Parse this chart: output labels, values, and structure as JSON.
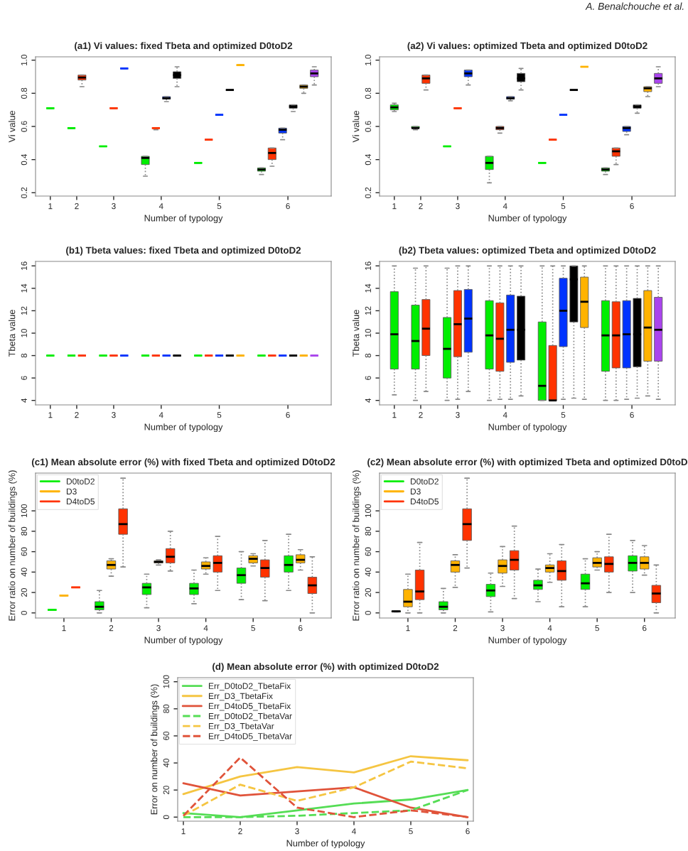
{
  "chart_data": [
    {
      "type": "box",
      "title": "(a1) Vi values: fixed Tbeta and optimized D0toD2",
      "xlabel": "Number of typology",
      "ylabel": "Vi value",
      "annotations": [
        "A. Benalchouche et al."
      ],
      "categories": [
        "1",
        "2",
        "3",
        "4",
        "5",
        "6"
      ],
      "series": [
        {
          "color": "#00ee00",
          "boxes": [
            {
              "low": 0.71,
              "q1": 0.71,
              "median": 0.71,
              "q3": 0.71,
              "high": 0.71
            },
            {
              "low": 0.59,
              "q1": 0.59,
              "median": 0.59,
              "q3": 0.59,
              "high": 0.59
            },
            {
              "low": 0.48,
              "q1": 0.48,
              "median": 0.48,
              "q3": 0.48,
              "high": 0.48
            },
            {
              "low": 0.3,
              "q1": 0.37,
              "median": 0.41,
              "q3": 0.42,
              "high": 0.42
            },
            {
              "low": 0.38,
              "q1": 0.38,
              "median": 0.38,
              "q3": 0.38,
              "high": 0.38
            },
            {
              "low": 0.31,
              "q1": 0.33,
              "median": 0.34,
              "q3": 0.35,
              "high": 0.35
            }
          ]
        },
        {
          "color": "#ff3300",
          "boxes": [
            null,
            {
              "low": 0.84,
              "q1": 0.88,
              "median": 0.895,
              "q3": 0.91,
              "high": 0.91
            },
            {
              "low": 0.71,
              "q1": 0.71,
              "median": 0.71,
              "q3": 0.71,
              "high": 0.71
            },
            {
              "low": 0.58,
              "q1": 0.59,
              "median": 0.59,
              "q3": 0.59,
              "high": 0.59
            },
            {
              "low": 0.52,
              "q1": 0.52,
              "median": 0.52,
              "q3": 0.52,
              "high": 0.52
            },
            {
              "low": 0.36,
              "q1": 0.4,
              "median": 0.44,
              "q3": 0.47,
              "high": 0.47
            }
          ]
        },
        {
          "color": "#0033ff",
          "boxes": [
            null,
            null,
            {
              "low": 0.95,
              "q1": 0.95,
              "median": 0.95,
              "q3": 0.95,
              "high": 0.95
            },
            {
              "low": 0.75,
              "q1": 0.765,
              "median": 0.77,
              "q3": 0.78,
              "high": 0.78
            },
            {
              "low": 0.67,
              "q1": 0.67,
              "median": 0.67,
              "q3": 0.67,
              "high": 0.67
            },
            {
              "low": 0.52,
              "q1": 0.56,
              "median": 0.58,
              "q3": 0.59,
              "high": 0.59
            }
          ]
        },
        {
          "color": "#000000",
          "boxes": [
            null,
            null,
            null,
            {
              "low": 0.84,
              "q1": 0.89,
              "median": 0.91,
              "q3": 0.93,
              "high": 0.96
            },
            {
              "low": 0.82,
              "q1": 0.82,
              "median": 0.82,
              "q3": 0.82,
              "high": 0.82
            },
            {
              "low": 0.69,
              "q1": 0.71,
              "median": 0.72,
              "q3": 0.73,
              "high": 0.73
            }
          ]
        },
        {
          "color": "#ffb300",
          "boxes": [
            null,
            null,
            null,
            null,
            {
              "low": 0.97,
              "q1": 0.97,
              "median": 0.97,
              "q3": 0.97,
              "high": 0.97
            },
            {
              "low": 0.8,
              "q1": 0.83,
              "median": 0.84,
              "q3": 0.85,
              "high": 0.85
            }
          ]
        },
        {
          "color": "#aa44ee",
          "boxes": [
            null,
            null,
            null,
            null,
            null,
            {
              "low": 0.85,
              "q1": 0.9,
              "median": 0.92,
              "q3": 0.94,
              "high": 0.96
            }
          ]
        }
      ],
      "ylim": [
        0.18,
        1.02
      ],
      "yticks": [
        0.2,
        0.4,
        0.6,
        0.8,
        {
          "value": 1.0,
          "label": "1.0"
        }
      ]
    },
    {
      "type": "box",
      "title": "(a2) Vi values: optimized Tbeta and optimized D0toD2",
      "xlabel": "Number of typology",
      "ylabel": "Vi value",
      "categories": [
        "1",
        "2",
        "3",
        "4",
        "5",
        "6"
      ],
      "series": [
        {
          "color": "#00ee00",
          "boxes": [
            {
              "low": 0.69,
              "q1": 0.7,
              "median": 0.715,
              "q3": 0.73,
              "high": 0.74
            },
            {
              "low": 0.58,
              "q1": 0.59,
              "median": 0.59,
              "q3": 0.6,
              "high": 0.6
            },
            {
              "low": 0.48,
              "q1": 0.48,
              "median": 0.48,
              "q3": 0.48,
              "high": 0.48
            },
            {
              "low": 0.26,
              "q1": 0.34,
              "median": 0.38,
              "q3": 0.42,
              "high": 0.42
            },
            {
              "low": 0.38,
              "q1": 0.38,
              "median": 0.38,
              "q3": 0.38,
              "high": 0.38
            },
            {
              "low": 0.31,
              "q1": 0.33,
              "median": 0.34,
              "q3": 0.35,
              "high": 0.35
            }
          ]
        },
        {
          "color": "#ff3300",
          "boxes": [
            null,
            {
              "low": 0.82,
              "q1": 0.86,
              "median": 0.89,
              "q3": 0.91,
              "high": 0.91
            },
            {
              "low": 0.71,
              "q1": 0.71,
              "median": 0.71,
              "q3": 0.71,
              "high": 0.71
            },
            {
              "low": 0.56,
              "q1": 0.58,
              "median": 0.59,
              "q3": 0.6,
              "high": 0.6
            },
            {
              "low": 0.52,
              "q1": 0.52,
              "median": 0.52,
              "q3": 0.52,
              "high": 0.52
            },
            {
              "low": 0.37,
              "q1": 0.42,
              "median": 0.45,
              "q3": 0.47,
              "high": 0.47
            }
          ]
        },
        {
          "color": "#0033ff",
          "boxes": [
            null,
            null,
            {
              "low": 0.85,
              "q1": 0.9,
              "median": 0.92,
              "q3": 0.94,
              "high": 0.94
            },
            {
              "low": 0.755,
              "q1": 0.765,
              "median": 0.77,
              "q3": 0.78,
              "high": 0.78
            },
            {
              "low": 0.67,
              "q1": 0.67,
              "median": 0.67,
              "q3": 0.67,
              "high": 0.67
            },
            {
              "low": 0.55,
              "q1": 0.57,
              "median": 0.59,
              "q3": 0.6,
              "high": 0.6
            }
          ]
        },
        {
          "color": "#000000",
          "boxes": [
            null,
            null,
            null,
            {
              "low": 0.82,
              "q1": 0.87,
              "median": 0.89,
              "q3": 0.92,
              "high": 0.95
            },
            {
              "low": 0.82,
              "q1": 0.82,
              "median": 0.82,
              "q3": 0.82,
              "high": 0.82
            },
            {
              "low": 0.68,
              "q1": 0.71,
              "median": 0.72,
              "q3": 0.73,
              "high": 0.73
            }
          ]
        },
        {
          "color": "#ffb300",
          "boxes": [
            null,
            null,
            null,
            null,
            {
              "low": 0.96,
              "q1": 0.96,
              "median": 0.96,
              "q3": 0.96,
              "high": 0.96
            },
            {
              "low": 0.78,
              "q1": 0.81,
              "median": 0.83,
              "q3": 0.84,
              "high": 0.84
            }
          ]
        },
        {
          "color": "#aa44ee",
          "boxes": [
            null,
            null,
            null,
            null,
            null,
            {
              "low": 0.84,
              "q1": 0.86,
              "median": 0.89,
              "q3": 0.92,
              "high": 0.96
            }
          ]
        }
      ],
      "ylim": [
        0.18,
        1.02
      ],
      "yticks": [
        0.2,
        0.4,
        0.6,
        0.8,
        {
          "value": 1.0,
          "label": "1.0"
        }
      ]
    },
    {
      "type": "box",
      "title": "(b1) Tbeta values: fixed Tbeta and optimized D0toD2",
      "xlabel": "Number of typology",
      "ylabel": "Tbeta value",
      "categories": [
        "1",
        "2",
        "3",
        "4",
        "5",
        "6"
      ],
      "series": [
        {
          "color": "#00ee00",
          "boxes": [
            {
              "low": 8,
              "q1": 8,
              "median": 8,
              "q3": 8,
              "high": 8
            },
            {
              "low": 8,
              "q1": 8,
              "median": 8,
              "q3": 8,
              "high": 8
            },
            {
              "low": 8,
              "q1": 8,
              "median": 8,
              "q3": 8,
              "high": 8
            },
            {
              "low": 8,
              "q1": 8,
              "median": 8,
              "q3": 8,
              "high": 8
            },
            {
              "low": 8,
              "q1": 8,
              "median": 8,
              "q3": 8,
              "high": 8
            },
            {
              "low": 8,
              "q1": 8,
              "median": 8,
              "q3": 8,
              "high": 8
            }
          ]
        },
        {
          "color": "#ff3300",
          "boxes": [
            null,
            {
              "low": 8,
              "q1": 8,
              "median": 8,
              "q3": 8,
              "high": 8
            },
            {
              "low": 8,
              "q1": 8,
              "median": 8,
              "q3": 8,
              "high": 8
            },
            {
              "low": 8,
              "q1": 8,
              "median": 8,
              "q3": 8,
              "high": 8
            },
            {
              "low": 8,
              "q1": 8,
              "median": 8,
              "q3": 8,
              "high": 8
            },
            {
              "low": 8,
              "q1": 8,
              "median": 8,
              "q3": 8,
              "high": 8
            }
          ]
        },
        {
          "color": "#0033ff",
          "boxes": [
            null,
            null,
            {
              "low": 8,
              "q1": 8,
              "median": 8,
              "q3": 8,
              "high": 8
            },
            {
              "low": 8,
              "q1": 8,
              "median": 8,
              "q3": 8,
              "high": 8
            },
            {
              "low": 8,
              "q1": 8,
              "median": 8,
              "q3": 8,
              "high": 8
            },
            {
              "low": 8,
              "q1": 8,
              "median": 8,
              "q3": 8,
              "high": 8
            }
          ]
        },
        {
          "color": "#000000",
          "boxes": [
            null,
            null,
            null,
            {
              "low": 8,
              "q1": 8,
              "median": 8,
              "q3": 8,
              "high": 8
            },
            {
              "low": 8,
              "q1": 8,
              "median": 8,
              "q3": 8,
              "high": 8
            },
            {
              "low": 8,
              "q1": 8,
              "median": 8,
              "q3": 8,
              "high": 8
            }
          ]
        },
        {
          "color": "#ffb300",
          "boxes": [
            null,
            null,
            null,
            null,
            {
              "low": 8,
              "q1": 8,
              "median": 8,
              "q3": 8,
              "high": 8
            },
            {
              "low": 8,
              "q1": 8,
              "median": 8,
              "q3": 8,
              "high": 8
            }
          ]
        },
        {
          "color": "#aa44ee",
          "boxes": [
            null,
            null,
            null,
            null,
            null,
            {
              "low": 8,
              "q1": 8,
              "median": 8,
              "q3": 8,
              "high": 8
            }
          ]
        }
      ],
      "ylim": [
        3.6,
        16.4
      ],
      "yticks": [
        4,
        6,
        8,
        10,
        12,
        14,
        16
      ]
    },
    {
      "type": "box",
      "title": "(b2) Tbeta values: optimized Tbeta and optimized D0toD2",
      "xlabel": "Number of typology",
      "ylabel": "Tbeta value",
      "categories": [
        "1",
        "2",
        "3",
        "4",
        "5",
        "6"
      ],
      "series": [
        {
          "color": "#00ee00",
          "boxes": [
            {
              "low": 4.5,
              "q1": 6.8,
              "median": 9.9,
              "q3": 13.7,
              "high": 16
            },
            {
              "low": 4,
              "q1": 6.8,
              "median": 9.3,
              "q3": 12.5,
              "high": 15.8
            },
            {
              "low": 4,
              "q1": 6,
              "median": 8.6,
              "q3": 11.4,
              "high": 15.8
            },
            {
              "low": 4,
              "q1": 6.8,
              "median": 9.8,
              "q3": 12.9,
              "high": 16
            },
            {
              "low": 4,
              "q1": 4,
              "median": 5.3,
              "q3": 11,
              "high": 16
            },
            {
              "low": 4,
              "q1": 6.6,
              "median": 9.8,
              "q3": 12.9,
              "high": 16
            }
          ]
        },
        {
          "color": "#ff3300",
          "boxes": [
            null,
            {
              "low": 4.8,
              "q1": 8,
              "median": 10.4,
              "q3": 13,
              "high": 16
            },
            {
              "low": 4.1,
              "q1": 7.9,
              "median": 10.8,
              "q3": 13.8,
              "high": 16
            },
            {
              "low": 4.1,
              "q1": 6.6,
              "median": 9.5,
              "q3": 12.7,
              "high": 16
            },
            {
              "low": 4,
              "q1": 4,
              "median": 4,
              "q3": 8.9,
              "high": 16
            },
            {
              "low": 4,
              "q1": 6.9,
              "median": 9.8,
              "q3": 12.8,
              "high": 16
            }
          ]
        },
        {
          "color": "#0033ff",
          "boxes": [
            null,
            null,
            {
              "low": 4.8,
              "q1": 8.3,
              "median": 11.3,
              "q3": 13.9,
              "high": 16
            },
            {
              "low": 4.1,
              "q1": 7.4,
              "median": 10.3,
              "q3": 13.4,
              "high": 16
            },
            {
              "low": 4.1,
              "q1": 8.8,
              "median": 12,
              "q3": 14.9,
              "high": 16
            },
            {
              "low": 4.1,
              "q1": 6.9,
              "median": 9.9,
              "q3": 12.9,
              "high": 16
            }
          ]
        },
        {
          "color": "#000000",
          "boxes": [
            null,
            null,
            null,
            {
              "low": 4.4,
              "q1": 7.6,
              "median": 10.3,
              "q3": 13.3,
              "high": 16
            },
            {
              "low": 4.2,
              "q1": 11,
              "median": 14.8,
              "q3": 16,
              "high": 16
            },
            {
              "low": 4.2,
              "q1": 7,
              "median": 9.9,
              "q3": 13.1,
              "high": 16
            }
          ]
        },
        {
          "color": "#ffb300",
          "boxes": [
            null,
            null,
            null,
            null,
            {
              "low": 4.1,
              "q1": 10.5,
              "median": 12.8,
              "q3": 15,
              "high": 16
            },
            {
              "low": 4.4,
              "q1": 7.5,
              "median": 10.5,
              "q3": 13.8,
              "high": 16
            }
          ]
        },
        {
          "color": "#aa44ee",
          "boxes": [
            null,
            null,
            null,
            null,
            null,
            {
              "low": 4.1,
              "q1": 7.5,
              "median": 10.3,
              "q3": 13.2,
              "high": 16
            }
          ]
        }
      ],
      "ylim": [
        3.6,
        16.4
      ],
      "yticks": [
        4,
        6,
        8,
        10,
        12,
        14,
        16
      ]
    },
    {
      "type": "box",
      "title": "(c1) Mean absolute error (%) with fixed Tbeta and optimized D0toD2",
      "xlabel": "Number of typology",
      "ylabel": "Error ratio on number of buildings (%)",
      "legend": "top left",
      "categories": [
        "1",
        "2",
        "3",
        "4",
        "5",
        "6"
      ],
      "series": [
        {
          "name": "D0toD2",
          "color": "#00ee00",
          "boxes": [
            {
              "low": 3,
              "q1": 3,
              "median": 3,
              "q3": 3,
              "high": 3
            },
            {
              "low": 0,
              "q1": 3,
              "median": 6,
              "q3": 11,
              "high": 22
            },
            {
              "low": 5,
              "q1": 18,
              "median": 25,
              "q3": 29,
              "high": 38
            },
            {
              "low": 9,
              "q1": 18,
              "median": 24,
              "q3": 29,
              "high": 42
            },
            {
              "low": 13,
              "q1": 29,
              "median": 37,
              "q3": 44,
              "high": 60
            },
            {
              "low": 22,
              "q1": 40,
              "median": 47,
              "q3": 56,
              "high": 77
            }
          ]
        },
        {
          "name": "D3",
          "color": "#ffb300",
          "boxes": [
            {
              "low": 17,
              "q1": 17,
              "median": 17,
              "q3": 17,
              "high": 17
            },
            {
              "low": 36,
              "q1": 43,
              "median": 47,
              "q3": 51,
              "high": 53
            },
            {
              "low": 47,
              "q1": 49,
              "median": 50,
              "q3": 51,
              "high": 52
            },
            {
              "low": 38,
              "q1": 43,
              "median": 46,
              "q3": 50,
              "high": 54
            },
            {
              "low": 46,
              "q1": 49,
              "median": 53,
              "q3": 56,
              "high": 58
            },
            {
              "low": 42,
              "q1": 49,
              "median": 52,
              "q3": 57,
              "high": 62
            }
          ]
        },
        {
          "name": "D4toD5",
          "color": "#ff3300",
          "boxes": [
            {
              "low": 25,
              "q1": 25,
              "median": 25,
              "q3": 25,
              "high": 25
            },
            {
              "low": 45,
              "q1": 77,
              "median": 87,
              "q3": 102,
              "high": 132
            },
            {
              "low": 41,
              "q1": 49,
              "median": 55,
              "q3": 63,
              "high": 80
            },
            {
              "low": 22,
              "q1": 40,
              "median": 49,
              "q3": 56,
              "high": 75
            },
            {
              "low": 12,
              "q1": 35,
              "median": 44,
              "q3": 52,
              "high": 71
            },
            {
              "low": 0,
              "q1": 19,
              "median": 27,
              "q3": 35,
              "high": 55
            }
          ]
        }
      ],
      "ylim": [
        -5,
        137
      ],
      "yticks": [
        0,
        20,
        40,
        60,
        80,
        100
      ]
    },
    {
      "type": "box",
      "title": "(c2) Mean absolute error (%) with optimized Tbeta and optimized D0toD",
      "xlabel": "Number of typology",
      "ylabel": "Error ratio on number of buildings (%)",
      "legend": "top left",
      "categories": [
        "1",
        "2",
        "3",
        "4",
        "5",
        "6"
      ],
      "series": [
        {
          "name": "D0toD2",
          "color": "#00ee00",
          "boxes": [
            {
              "low": 1,
              "q1": 1,
              "median": 1.5,
              "q3": 2,
              "high": 2
            },
            {
              "low": 0,
              "q1": 3,
              "median": 6,
              "q3": 11,
              "high": 24
            },
            {
              "low": 1,
              "q1": 16,
              "median": 22,
              "q3": 28,
              "high": 39
            },
            {
              "low": 11,
              "q1": 23,
              "median": 27,
              "q3": 32,
              "high": 43
            },
            {
              "low": 6,
              "q1": 23,
              "median": 29,
              "q3": 38,
              "high": 53
            },
            {
              "low": 20,
              "q1": 41,
              "median": 49,
              "q3": 56,
              "high": 71
            }
          ]
        },
        {
          "name": "D3",
          "color": "#ffb300",
          "boxes": [
            {
              "low": 0,
              "q1": 6,
              "median": 11,
              "q3": 23,
              "high": 38
            },
            {
              "low": 25,
              "q1": 40,
              "median": 47,
              "q3": 51,
              "high": 57
            },
            {
              "low": 26,
              "q1": 39,
              "median": 46,
              "q3": 52,
              "high": 65
            },
            {
              "low": 30,
              "q1": 40,
              "median": 44,
              "q3": 47,
              "high": 58
            },
            {
              "low": 42,
              "q1": 45,
              "median": 49,
              "q3": 54,
              "high": 60
            },
            {
              "low": 37,
              "q1": 43,
              "median": 49,
              "q3": 55,
              "high": 66
            }
          ]
        },
        {
          "name": "D4toD5",
          "color": "#ff3300",
          "boxes": [
            {
              "low": 0,
              "q1": 13,
              "median": 21,
              "q3": 42,
              "high": 69
            },
            {
              "low": 44,
              "q1": 71,
              "median": 87,
              "q3": 102,
              "high": 132
            },
            {
              "low": 14,
              "q1": 42,
              "median": 52,
              "q3": 61,
              "high": 85
            },
            {
              "low": 6,
              "q1": 32,
              "median": 41,
              "q3": 51,
              "high": 67
            },
            {
              "low": 20,
              "q1": 40,
              "median": 48,
              "q3": 55,
              "high": 77
            },
            {
              "low": 0,
              "q1": 10,
              "median": 19,
              "q3": 27,
              "high": 47
            }
          ]
        }
      ],
      "ylim": [
        -5,
        137
      ],
      "yticks": [
        0,
        20,
        40,
        60,
        80,
        100
      ]
    },
    {
      "type": "line",
      "title": "(d) Mean absolute error (%) with optimized D0toD2",
      "xlabel": "Number of typology",
      "ylabel": "Error on number of buildings (%)",
      "legend": "top left",
      "x": [
        1,
        2,
        3,
        4,
        5,
        6
      ],
      "series": [
        {
          "name": "Err_D0toD2_TbetaFix",
          "color": "#55dd55",
          "line_style": "solid",
          "values": [
            3,
            0,
            5,
            10,
            13,
            20
          ]
        },
        {
          "name": "Err_D3_TbetaFix",
          "color": "#f5c542",
          "line_style": "solid",
          "values": [
            17,
            30,
            37,
            33,
            45,
            42
          ]
        },
        {
          "name": "Err_D4toD5_TbetaFix",
          "color": "#e0533a",
          "line_style": "solid",
          "values": [
            25,
            16,
            19,
            22,
            7,
            0
          ]
        },
        {
          "name": "Err_D0toD2_TbetaVar",
          "color": "#55dd55",
          "line_style": "dashed",
          "values": [
            0,
            0,
            1,
            3,
            5,
            20
          ]
        },
        {
          "name": "Err_D3_TbetaVar",
          "color": "#f5c542",
          "line_style": "dashed",
          "values": [
            1,
            24,
            12,
            22,
            41,
            36
          ]
        },
        {
          "name": "Err_D4toD5_TbetaVar",
          "color": "#e0533a",
          "line_style": "dashed",
          "values": [
            1,
            44,
            7,
            0,
            5,
            0
          ]
        }
      ],
      "xlim": [
        0.9,
        6.1
      ],
      "xticks": [
        1,
        2,
        3,
        4,
        5,
        6
      ],
      "ylim": [
        -3,
        103
      ],
      "yticks": [
        0,
        20,
        40,
        60,
        80,
        100
      ]
    }
  ]
}
